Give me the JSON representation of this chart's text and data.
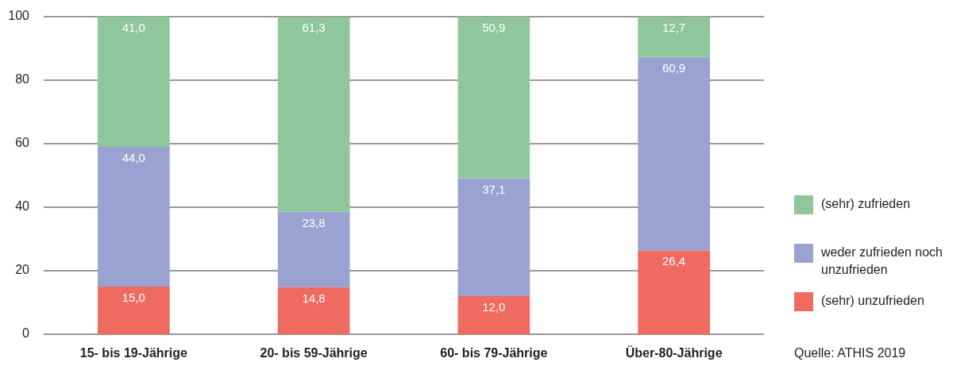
{
  "chart_data": {
    "type": "bar",
    "stacked": true,
    "categories": [
      "15- bis 19-Jährige",
      "20- bis 59-Jährige",
      "60- bis 79-Jährige",
      "Über-80-Jährige"
    ],
    "series": [
      {
        "name": "(sehr) unzufrieden",
        "color": "#ef6b62",
        "values": [
          15.0,
          14.8,
          12.0,
          26.4
        ],
        "value_labels": [
          "15,0",
          "14,8",
          "12,0",
          "26,4"
        ]
      },
      {
        "name": "weder zufrieden noch unzufrieden",
        "color": "#9aa2d2",
        "values": [
          44.0,
          23.8,
          37.1,
          60.9
        ],
        "value_labels": [
          "44,0",
          "23,8",
          "37,1",
          "60,9"
        ]
      },
      {
        "name": "(sehr) zufrieden",
        "color": "#8fc79a",
        "values": [
          41.0,
          61.3,
          50.9,
          12.7
        ],
        "value_labels": [
          "41,0",
          "61,3",
          "50,9",
          "12,7"
        ]
      }
    ],
    "ylim": [
      0,
      100
    ],
    "yticks": [
      0,
      20,
      40,
      60,
      80,
      100
    ],
    "grid": "y",
    "legend": "right",
    "annotations": [
      "Quelle: ATHIS 2019"
    ]
  }
}
